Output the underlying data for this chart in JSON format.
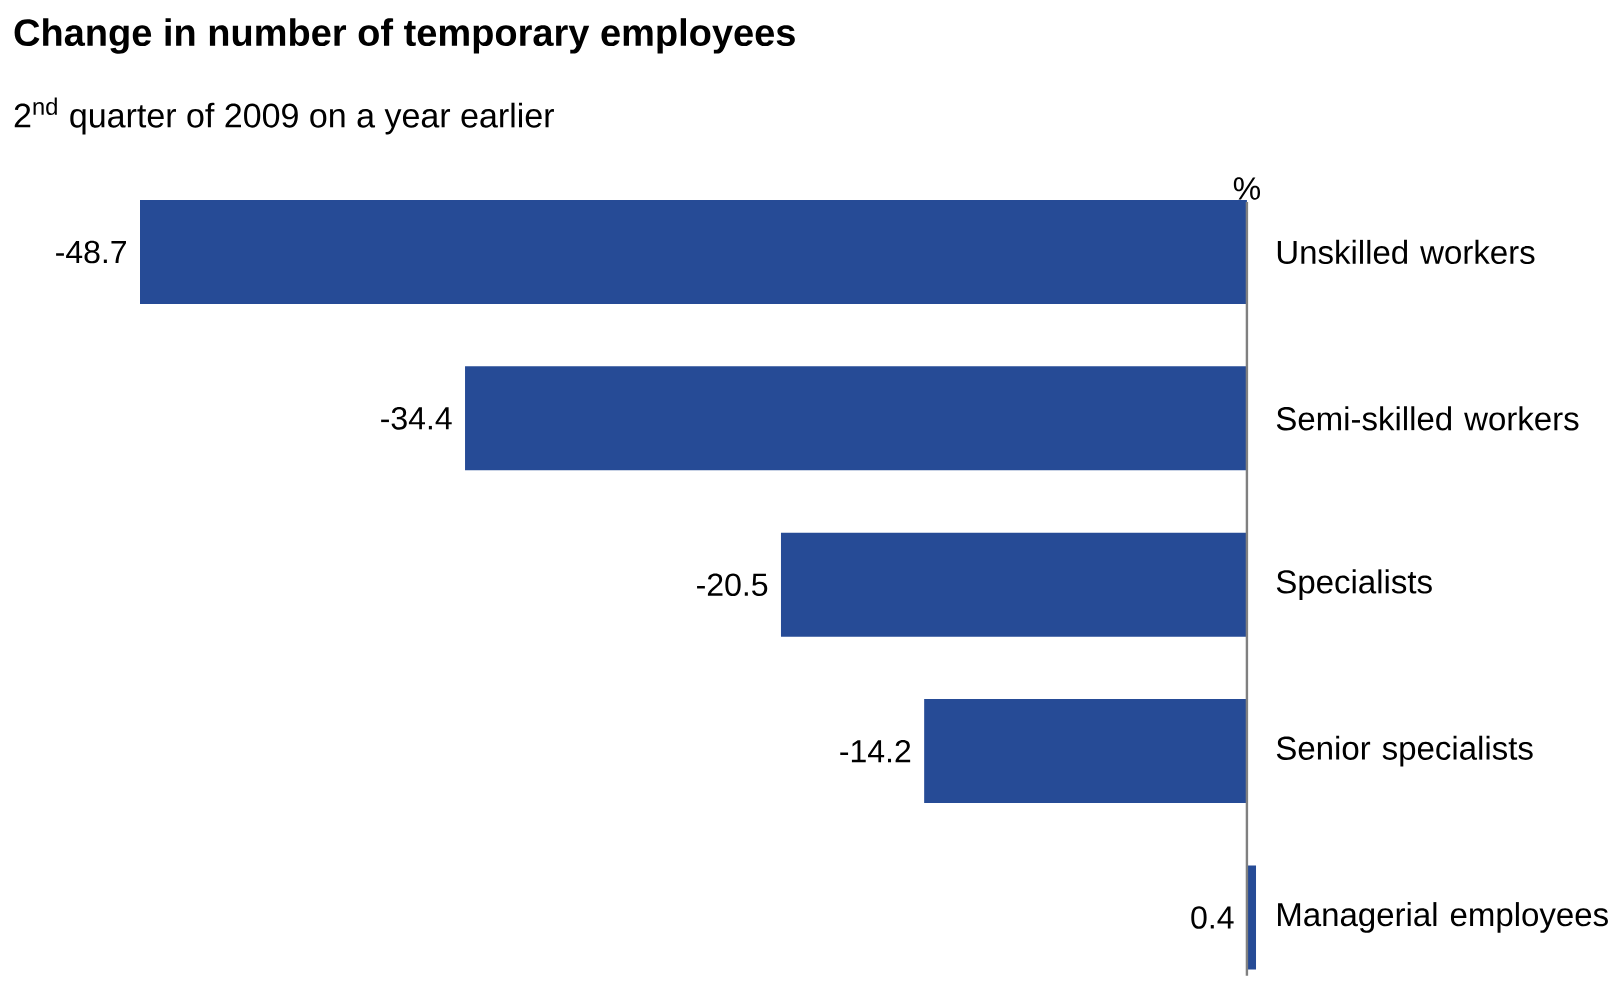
{
  "chart_data": {
    "type": "bar",
    "orientation": "horizontal",
    "title": "Change in number of temporary employees",
    "subtitle": "2$^{nd}$ quarter of 2009 on a year earlier",
    "xlabel": "%",
    "categories": [
      "Unskilled workers",
      "Semi-skilled workers",
      "Specialists",
      "Senior specialists",
      "Managerial employees"
    ],
    "values": [
      -48.7,
      -34.4,
      -20.5,
      -14.2,
      0.4
    ],
    "color": "#264b96",
    "data_labels": true
  }
}
